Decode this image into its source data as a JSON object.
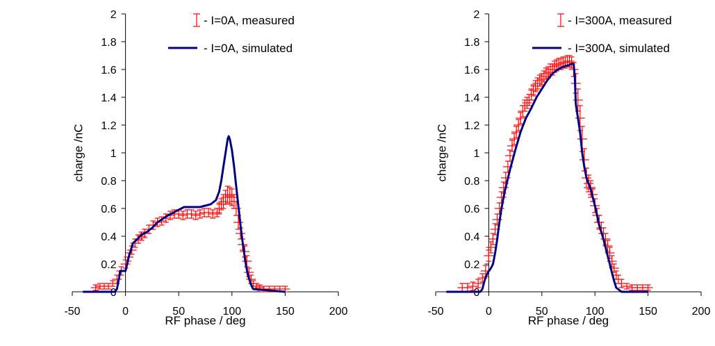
{
  "colors": {
    "measured": "#ff0000",
    "simulated": "#000080",
    "axis": "#000000"
  },
  "chart_data": [
    {
      "type": "line",
      "xlabel": "RF phase / deg",
      "ylabel": "charge /nC",
      "xlim": [
        -50,
        200
      ],
      "ylim": [
        0,
        2
      ],
      "xticks": [
        -50,
        0,
        50,
        100,
        150,
        200
      ],
      "xtick_labels": [
        "-50",
        "0",
        "50",
        "100",
        "150",
        "200"
      ],
      "yticks": [
        0,
        0.2,
        0.4,
        0.6,
        0.8,
        1,
        1.2,
        1.4,
        1.6,
        1.8,
        2
      ],
      "ytick_labels": [
        "0",
        "0.2",
        "0.4",
        "0.6",
        "0.8",
        "1",
        "1.2",
        "1.4",
        "1.6",
        "1.8",
        "2"
      ],
      "grid": false,
      "legend_position": "top-right",
      "series": [
        {
          "name": "- I=0A, measured",
          "kind": "errorbar",
          "x": [
            -28,
            -24,
            -20,
            -16,
            -12,
            -8,
            -4,
            0,
            3,
            6,
            9,
            12,
            15,
            18,
            22,
            26,
            30,
            34,
            38,
            42,
            46,
            50,
            54,
            58,
            62,
            66,
            70,
            74,
            78,
            82,
            86,
            88,
            90,
            92,
            94,
            96,
            98,
            100,
            102,
            104,
            106,
            108,
            110,
            112,
            114,
            116,
            118,
            120,
            123,
            126,
            130,
            135,
            140,
            145,
            150
          ],
          "y": [
            0.03,
            0.04,
            0.04,
            0.04,
            0.06,
            0.09,
            0.15,
            0.2,
            0.25,
            0.3,
            0.35,
            0.38,
            0.4,
            0.42,
            0.45,
            0.48,
            0.5,
            0.51,
            0.53,
            0.55,
            0.56,
            0.56,
            0.55,
            0.56,
            0.56,
            0.55,
            0.56,
            0.57,
            0.57,
            0.56,
            0.57,
            0.6,
            0.63,
            0.65,
            0.68,
            0.7,
            0.69,
            0.68,
            0.65,
            0.6,
            0.5,
            0.42,
            0.34,
            0.29,
            0.22,
            0.14,
            0.09,
            0.06,
            0.04,
            0.03,
            0.02,
            0.02,
            0.02,
            0.02,
            0.02
          ],
          "err": [
            0.02,
            0.02,
            0.02,
            0.02,
            0.02,
            0.03,
            0.03,
            0.03,
            0.03,
            0.03,
            0.03,
            0.03,
            0.03,
            0.03,
            0.03,
            0.03,
            0.03,
            0.03,
            0.03,
            0.03,
            0.03,
            0.03,
            0.03,
            0.03,
            0.03,
            0.03,
            0.03,
            0.03,
            0.03,
            0.03,
            0.03,
            0.04,
            0.04,
            0.05,
            0.05,
            0.06,
            0.06,
            0.06,
            0.05,
            0.05,
            0.05,
            0.04,
            0.04,
            0.04,
            0.04,
            0.03,
            0.03,
            0.02,
            0.02,
            0.02,
            0.02,
            0.02,
            0.02,
            0.02,
            0.02
          ]
        },
        {
          "name": "- I=0A, simulated",
          "kind": "line",
          "x": [
            -40,
            -10,
            -8,
            -6,
            -5,
            0,
            1,
            3,
            5,
            7,
            10,
            15,
            20,
            25,
            30,
            40,
            50,
            55,
            60,
            70,
            80,
            85,
            88,
            90,
            92,
            94,
            96,
            97,
            98,
            100,
            102,
            104,
            106,
            108,
            110,
            112,
            113,
            115,
            118,
            120,
            150
          ],
          "y": [
            0,
            0,
            0.02,
            0.1,
            0.15,
            0.15,
            0.18,
            0.25,
            0.3,
            0.35,
            0.37,
            0.41,
            0.43,
            0.46,
            0.5,
            0.55,
            0.59,
            0.61,
            0.61,
            0.61,
            0.63,
            0.66,
            0.72,
            0.8,
            0.9,
            1.0,
            1.1,
            1.12,
            1.1,
            1.02,
            0.9,
            0.76,
            0.62,
            0.48,
            0.36,
            0.25,
            0.2,
            0.12,
            0.05,
            0.02,
            0
          ]
        }
      ]
    },
    {
      "type": "line",
      "xlabel": "RF phase / deg",
      "ylabel": "charge /nC",
      "xlim": [
        -50,
        200
      ],
      "ylim": [
        0,
        2
      ],
      "xticks": [
        -50,
        0,
        50,
        100,
        150,
        200
      ],
      "xtick_labels": [
        "-50",
        "0",
        "50",
        "100",
        "150",
        "200"
      ],
      "yticks": [
        0,
        0.2,
        0.4,
        0.6,
        0.8,
        1,
        1.2,
        1.4,
        1.6,
        1.8,
        2
      ],
      "ytick_labels": [
        "0",
        "0.2",
        "0.4",
        "0.6",
        "0.8",
        "1",
        "1.2",
        "1.4",
        "1.6",
        "1.8",
        "2"
      ],
      "grid": false,
      "legend_position": "top-right",
      "series": [
        {
          "name": "- I=300A, measured",
          "kind": "errorbar",
          "x": [
            -25,
            -20,
            -15,
            -10,
            -6,
            -3,
            0,
            2,
            4,
            6,
            8,
            10,
            12,
            14,
            16,
            18,
            20,
            22,
            24,
            26,
            28,
            30,
            32,
            34,
            36,
            38,
            40,
            42,
            44,
            46,
            48,
            50,
            52,
            54,
            56,
            58,
            60,
            62,
            64,
            66,
            68,
            70,
            72,
            74,
            76,
            78,
            80,
            82,
            84,
            86,
            88,
            90,
            92,
            94,
            96,
            98,
            100,
            102,
            104,
            106,
            108,
            110,
            112,
            114,
            116,
            118,
            120,
            122,
            125,
            130,
            135,
            140,
            145,
            150
          ],
          "y": [
            0.03,
            0.03,
            0.04,
            0.06,
            0.1,
            0.15,
            0.26,
            0.32,
            0.38,
            0.45,
            0.52,
            0.6,
            0.68,
            0.75,
            0.82,
            0.9,
            0.98,
            1.05,
            1.1,
            1.15,
            1.2,
            1.25,
            1.3,
            1.34,
            1.36,
            1.38,
            1.42,
            1.45,
            1.48,
            1.5,
            1.52,
            1.53,
            1.55,
            1.57,
            1.58,
            1.6,
            1.6,
            1.62,
            1.63,
            1.64,
            1.64,
            1.65,
            1.65,
            1.66,
            1.66,
            1.65,
            1.6,
            1.5,
            1.38,
            1.25,
            1.1,
            0.95,
            0.82,
            0.78,
            0.74,
            0.7,
            0.62,
            0.55,
            0.5,
            0.46,
            0.42,
            0.38,
            0.33,
            0.28,
            0.22,
            0.17,
            0.12,
            0.09,
            0.06,
            0.04,
            0.03,
            0.03,
            0.03,
            0.03
          ],
          "err": [
            0.03,
            0.03,
            0.03,
            0.03,
            0.03,
            0.04,
            0.04,
            0.04,
            0.04,
            0.04,
            0.04,
            0.04,
            0.04,
            0.04,
            0.04,
            0.04,
            0.04,
            0.04,
            0.04,
            0.04,
            0.04,
            0.04,
            0.04,
            0.04,
            0.04,
            0.04,
            0.04,
            0.04,
            0.04,
            0.04,
            0.04,
            0.04,
            0.04,
            0.04,
            0.04,
            0.04,
            0.04,
            0.04,
            0.04,
            0.04,
            0.04,
            0.04,
            0.04,
            0.04,
            0.04,
            0.04,
            0.05,
            0.07,
            0.08,
            0.09,
            0.09,
            0.08,
            0.07,
            0.06,
            0.06,
            0.05,
            0.05,
            0.05,
            0.05,
            0.04,
            0.04,
            0.04,
            0.04,
            0.04,
            0.04,
            0.03,
            0.03,
            0.03,
            0.03,
            0.02,
            0.02,
            0.02,
            0.02,
            0.02
          ]
        },
        {
          "name": "- I=300A, simulated",
          "kind": "line",
          "x": [
            -40,
            -8,
            -6,
            -4,
            -2,
            0,
            2,
            4,
            6,
            8,
            10,
            12,
            15,
            20,
            25,
            30,
            35,
            40,
            45,
            50,
            55,
            60,
            65,
            70,
            75,
            78,
            80,
            81,
            82,
            84,
            86,
            88,
            90,
            92,
            94,
            96,
            98,
            100,
            102,
            104,
            106,
            108,
            110,
            112,
            114,
            116,
            118,
            120,
            125,
            150
          ],
          "y": [
            0,
            0,
            0.02,
            0.08,
            0.12,
            0.15,
            0.17,
            0.2,
            0.28,
            0.38,
            0.5,
            0.6,
            0.72,
            0.88,
            1.02,
            1.15,
            1.25,
            1.32,
            1.4,
            1.46,
            1.52,
            1.57,
            1.6,
            1.62,
            1.63,
            1.64,
            1.64,
            1.55,
            1.35,
            1.25,
            1.15,
            1.0,
            0.9,
            0.82,
            0.78,
            0.74,
            0.68,
            0.62,
            0.55,
            0.48,
            0.43,
            0.38,
            0.32,
            0.26,
            0.2,
            0.14,
            0.08,
            0.03,
            0,
            0
          ]
        }
      ]
    }
  ]
}
